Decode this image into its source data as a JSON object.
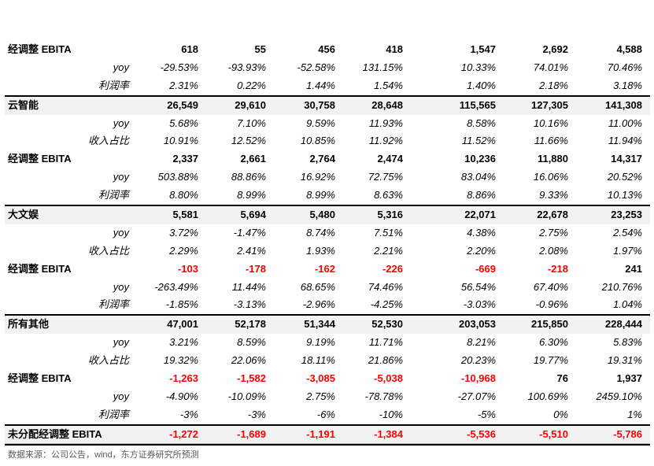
{
  "rows": [
    {
      "label": "经调整 EBITA",
      "kind": "bold",
      "values": [
        "618",
        "55",
        "456",
        "418",
        "1,547",
        "2,692",
        "4,588"
      ]
    },
    {
      "label": "yoy",
      "kind": "sub",
      "values": [
        "-29.53%",
        "-93.93%",
        "-52.58%",
        "131.15%",
        "10.33%",
        "74.01%",
        "70.46%"
      ]
    },
    {
      "label": "利润率",
      "kind": "sub",
      "values": [
        "2.31%",
        "0.22%",
        "1.44%",
        "1.54%",
        "1.40%",
        "2.18%",
        "3.18%"
      ]
    },
    {
      "label": "云智能",
      "kind": "section",
      "values": [
        "26,549",
        "29,610",
        "30,758",
        "28,648",
        "115,565",
        "127,305",
        "141,308"
      ]
    },
    {
      "label": "yoy",
      "kind": "sub",
      "values": [
        "5.68%",
        "7.10%",
        "9.59%",
        "11.93%",
        "8.58%",
        "10.16%",
        "11.00%"
      ]
    },
    {
      "label": "收入占比",
      "kind": "sub",
      "values": [
        "10.91%",
        "12.52%",
        "10.85%",
        "11.92%",
        "11.52%",
        "11.66%",
        "11.94%"
      ]
    },
    {
      "label": "经调整 EBITA",
      "kind": "bold",
      "values": [
        "2,337",
        "2,661",
        "2,764",
        "2,474",
        "10,236",
        "11,880",
        "14,317"
      ]
    },
    {
      "label": "yoy",
      "kind": "sub",
      "values": [
        "503.88%",
        "88.86%",
        "16.92%",
        "72.75%",
        "83.04%",
        "16.06%",
        "20.52%"
      ]
    },
    {
      "label": "利润率",
      "kind": "sub",
      "values": [
        "8.80%",
        "8.99%",
        "8.99%",
        "8.63%",
        "8.86%",
        "9.33%",
        "10.13%"
      ]
    },
    {
      "label": "大文娱",
      "kind": "section",
      "values": [
        "5,581",
        "5,694",
        "5,480",
        "5,316",
        "22,071",
        "22,678",
        "23,253"
      ]
    },
    {
      "label": "yoy",
      "kind": "sub",
      "values": [
        "3.72%",
        "-1.47%",
        "8.74%",
        "7.51%",
        "4.38%",
        "2.75%",
        "2.54%"
      ]
    },
    {
      "label": "收入占比",
      "kind": "sub",
      "values": [
        "2.29%",
        "2.41%",
        "1.93%",
        "2.21%",
        "2.20%",
        "2.08%",
        "1.97%"
      ]
    },
    {
      "label": "经调整 EBITA",
      "kind": "bold",
      "values": [
        "-103",
        "-178",
        "-162",
        "-226",
        "-669",
        "-218",
        "241"
      ]
    },
    {
      "label": "yoy",
      "kind": "sub",
      "values": [
        "-263.49%",
        "11.44%",
        "68.65%",
        "74.46%",
        "56.54%",
        "67.40%",
        "210.76%"
      ]
    },
    {
      "label": "利润率",
      "kind": "sub",
      "values": [
        "-1.85%",
        "-3.13%",
        "-2.96%",
        "-4.25%",
        "-3.03%",
        "-0.96%",
        "1.04%"
      ]
    },
    {
      "label": "所有其他",
      "kind": "section",
      "values": [
        "47,001",
        "52,178",
        "51,344",
        "52,530",
        "203,053",
        "215,850",
        "228,444"
      ]
    },
    {
      "label": "yoy",
      "kind": "sub",
      "values": [
        "3.21%",
        "8.59%",
        "9.19%",
        "11.71%",
        "8.21%",
        "6.30%",
        "5.83%"
      ]
    },
    {
      "label": "收入占比",
      "kind": "sub",
      "values": [
        "19.32%",
        "22.06%",
        "18.11%",
        "21.86%",
        "20.23%",
        "19.77%",
        "19.31%"
      ]
    },
    {
      "label": "经调整 EBITA",
      "kind": "bold",
      "values": [
        "-1,263",
        "-1,582",
        "-3,085",
        "-5,038",
        "-10,968",
        "76",
        "1,937"
      ]
    },
    {
      "label": "yoy",
      "kind": "sub",
      "values": [
        "-4.90%",
        "-10.09%",
        "2.75%",
        "-78.78%",
        "-27.07%",
        "100.69%",
        "2459.10%"
      ]
    },
    {
      "label": "利润率",
      "kind": "sub",
      "values": [
        "-3%",
        "-3%",
        "-6%",
        "-10%",
        "-5%",
        "0%",
        "1%"
      ]
    },
    {
      "label": "未分配经调整 EBITA",
      "kind": "final",
      "values": [
        "-1,272",
        "-1,689",
        "-1,191",
        "-1,384",
        "-5,536",
        "-5,510",
        "-5,786"
      ]
    }
  ],
  "source": "数据来源：公司公告，wind，东方证券研究所预测",
  "colors": {
    "negative_bold": "#ff0000",
    "section_bg": "#f2f2f2"
  }
}
